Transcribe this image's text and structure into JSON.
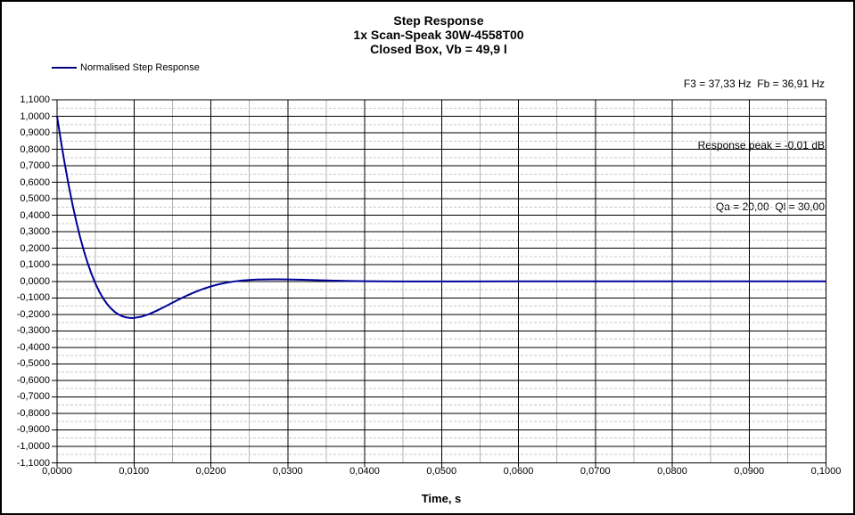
{
  "header": {
    "title_lines": [
      "Step Response",
      "1x Scan-Speak 30W-4558T00",
      "Closed Box, Vb = 49,9 l"
    ],
    "info_lines": [
      "F3 = 37,33 Hz  Fb = 36,91 Hz",
      "Response peak = -0,01 dB",
      "Qa = 20,00  Ql = 30,00"
    ]
  },
  "legend": {
    "label": "Normalised Step Response",
    "line_color": "#000080"
  },
  "chart_data": {
    "type": "line",
    "title": "Step Response",
    "subtitle": "1x Scan-Speak 30W-4558T00 — Closed Box, Vb = 49,9 l",
    "xlabel": "Time, s",
    "ylabel": "",
    "xlim": [
      0,
      0.1
    ],
    "ylim": [
      -1.1,
      1.1
    ],
    "x_major_step": 0.01,
    "x_minor_step": 0.005,
    "y_major_step": 0.1,
    "y_minor_step": 0.05,
    "grid": {
      "major_color": "#000000",
      "minor_h_color": "#c8c8c8",
      "minor_v_color": "#b4b4b4"
    },
    "legend_position": "top-left",
    "x_tick_labels": [
      "0,0000",
      "0,0100",
      "0,0200",
      "0,0300",
      "0,0400",
      "0,0500",
      "0,0600",
      "0,0700",
      "0,0800",
      "0,0900",
      "0,1000"
    ],
    "y_tick_labels": [
      "1,1000",
      "1,0000",
      "0,9000",
      "0,8000",
      "0,7000",
      "0,6000",
      "0,5000",
      "0,4000",
      "0,3000",
      "0,2000",
      "0,1000",
      "0,0000",
      "-0,1000",
      "-0,2000",
      "-0,3000",
      "-0,4000",
      "-0,5000",
      "-0,6000",
      "-0,7000",
      "-0,8000",
      "-0,9000",
      "-1,0000",
      "-1,1000"
    ],
    "series": [
      {
        "name": "Normalised Step Response",
        "color": "#000099",
        "x": [
          0.0,
          0.0005,
          0.001,
          0.0015,
          0.002,
          0.0025,
          0.003,
          0.0035,
          0.004,
          0.0045,
          0.005,
          0.0055,
          0.006,
          0.0065,
          0.007,
          0.0075,
          0.008,
          0.0085,
          0.009,
          0.0095,
          0.01,
          0.011,
          0.012,
          0.013,
          0.014,
          0.015,
          0.016,
          0.017,
          0.018,
          0.019,
          0.02,
          0.021,
          0.022,
          0.023,
          0.024,
          0.025,
          0.026,
          0.027,
          0.028,
          0.029,
          0.03,
          0.032,
          0.034,
          0.036,
          0.038,
          0.04,
          0.045,
          0.05,
          0.06,
          0.07,
          0.08,
          0.09,
          0.1
        ],
        "y": [
          1.0,
          0.8507,
          0.7122,
          0.5847,
          0.4682,
          0.3625,
          0.2675,
          0.1825,
          0.1079,
          0.0422,
          -0.0143,
          -0.0628,
          -0.1035,
          -0.137,
          -0.1642,
          -0.185,
          -0.2007,
          -0.2118,
          -0.2186,
          -0.2218,
          -0.2217,
          -0.2138,
          -0.1979,
          -0.1772,
          -0.154,
          -0.1298,
          -0.1061,
          -0.0838,
          -0.0636,
          -0.0459,
          -0.0307,
          -0.0183,
          -0.0085,
          -0.001,
          0.0045,
          0.0083,
          0.0106,
          0.0118,
          0.0122,
          0.012,
          0.0114,
          0.0095,
          0.0066,
          0.004,
          0.002,
          0.0006,
          -0.0008,
          -0.0006,
          0.0001,
          0.0002,
          0.0,
          0.0,
          0.0
        ]
      }
    ]
  }
}
